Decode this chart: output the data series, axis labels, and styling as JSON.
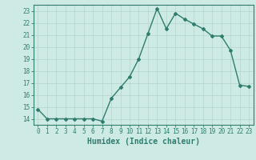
{
  "x": [
    0,
    1,
    2,
    3,
    4,
    5,
    6,
    7,
    8,
    9,
    10,
    11,
    12,
    13,
    14,
    15,
    16,
    17,
    18,
    19,
    20,
    21,
    22,
    23
  ],
  "y": [
    14.8,
    14.0,
    14.0,
    14.0,
    14.0,
    14.0,
    14.0,
    13.8,
    15.7,
    16.6,
    17.5,
    19.0,
    21.1,
    23.2,
    21.5,
    22.8,
    22.3,
    21.9,
    21.5,
    20.9,
    20.9,
    19.7,
    16.8,
    16.7
  ],
  "line_color": "#2e7d6e",
  "marker": "D",
  "marker_size": 2.0,
  "linewidth": 1.0,
  "xlabel": "Humidex (Indice chaleur)",
  "xlim": [
    -0.5,
    23.5
  ],
  "ylim": [
    13.5,
    23.5
  ],
  "yticks": [
    14,
    15,
    16,
    17,
    18,
    19,
    20,
    21,
    22,
    23
  ],
  "xticks": [
    0,
    1,
    2,
    3,
    4,
    5,
    6,
    7,
    8,
    9,
    10,
    11,
    12,
    13,
    14,
    15,
    16,
    17,
    18,
    19,
    20,
    21,
    22,
    23
  ],
  "background_color": "#ceeae4",
  "grid_color": "#b8d8d2",
  "tick_label_fontsize": 5.5,
  "xlabel_fontsize": 7.0
}
